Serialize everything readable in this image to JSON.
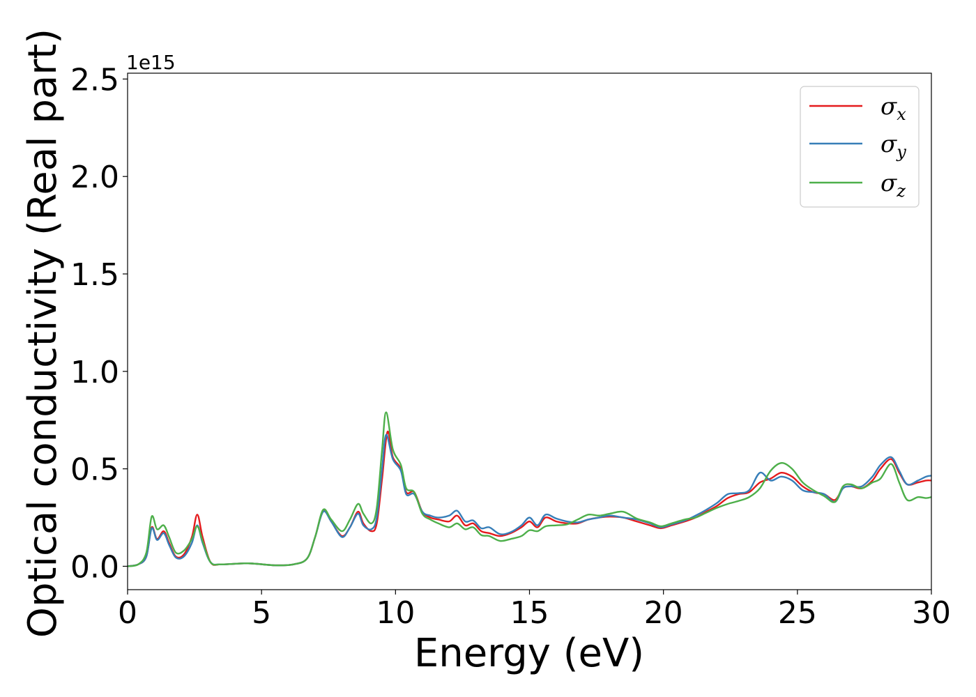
{
  "chart_data": {
    "type": "line",
    "xlabel": "Energy (eV)",
    "ylabel": "Optical conductivity (Real part)",
    "y_offset_label": "1e15",
    "y_scale_factor": 1000000000000000.0,
    "xlim": [
      0,
      30
    ],
    "ylim": [
      -0.12,
      2.53
    ],
    "grid": false,
    "legend_position": "top-right",
    "x_ticks": [
      0,
      5,
      10,
      15,
      20,
      25,
      30
    ],
    "x_tick_labels": [
      "0",
      "5",
      "10",
      "15",
      "20",
      "25",
      "30"
    ],
    "y_ticks": [
      0.0,
      0.5,
      1.0,
      1.5,
      2.0,
      2.5
    ],
    "y_tick_labels": [
      "0.0",
      "0.5",
      "1.0",
      "1.5",
      "2.0",
      "2.5"
    ],
    "series": [
      {
        "name": "σx",
        "symbol": "σ",
        "subscript": "x",
        "color": "#e41a1c",
        "points": [
          [
            0,
            0
          ],
          [
            0.4,
            0.01
          ],
          [
            0.7,
            0.05
          ],
          [
            0.9,
            0.2
          ],
          [
            1.1,
            0.14
          ],
          [
            1.35,
            0.18
          ],
          [
            1.55,
            0.12
          ],
          [
            1.8,
            0.05
          ],
          [
            2.1,
            0.06
          ],
          [
            2.4,
            0.15
          ],
          [
            2.6,
            0.265
          ],
          [
            2.8,
            0.15
          ],
          [
            3.1,
            0.02
          ],
          [
            3.5,
            0.01
          ],
          [
            4.5,
            0.015
          ],
          [
            5.5,
            0.005
          ],
          [
            6.2,
            0.01
          ],
          [
            6.7,
            0.04
          ],
          [
            7.0,
            0.15
          ],
          [
            7.3,
            0.285
          ],
          [
            7.6,
            0.23
          ],
          [
            8.0,
            0.155
          ],
          [
            8.3,
            0.2
          ],
          [
            8.6,
            0.28
          ],
          [
            8.8,
            0.22
          ],
          [
            9.1,
            0.18
          ],
          [
            9.3,
            0.22
          ],
          [
            9.5,
            0.45
          ],
          [
            9.7,
            0.69
          ],
          [
            9.9,
            0.56
          ],
          [
            10.2,
            0.5
          ],
          [
            10.4,
            0.38
          ],
          [
            10.7,
            0.38
          ],
          [
            11.0,
            0.28
          ],
          [
            11.3,
            0.25
          ],
          [
            11.6,
            0.24
          ],
          [
            12.0,
            0.23
          ],
          [
            12.3,
            0.26
          ],
          [
            12.6,
            0.21
          ],
          [
            12.9,
            0.22
          ],
          [
            13.2,
            0.18
          ],
          [
            13.5,
            0.17
          ],
          [
            13.9,
            0.155
          ],
          [
            14.3,
            0.17
          ],
          [
            14.7,
            0.2
          ],
          [
            15.0,
            0.23
          ],
          [
            15.3,
            0.2
          ],
          [
            15.6,
            0.25
          ],
          [
            16.0,
            0.23
          ],
          [
            16.4,
            0.22
          ],
          [
            16.8,
            0.22
          ],
          [
            17.2,
            0.24
          ],
          [
            17.6,
            0.25
          ],
          [
            18.0,
            0.255
          ],
          [
            18.5,
            0.25
          ],
          [
            19.0,
            0.23
          ],
          [
            19.5,
            0.21
          ],
          [
            19.9,
            0.195
          ],
          [
            20.3,
            0.21
          ],
          [
            20.8,
            0.23
          ],
          [
            21.2,
            0.25
          ],
          [
            21.6,
            0.28
          ],
          [
            22.0,
            0.31
          ],
          [
            22.4,
            0.35
          ],
          [
            22.8,
            0.37
          ],
          [
            23.2,
            0.38
          ],
          [
            23.6,
            0.43
          ],
          [
            24.0,
            0.45
          ],
          [
            24.4,
            0.48
          ],
          [
            24.8,
            0.46
          ],
          [
            25.2,
            0.41
          ],
          [
            25.6,
            0.38
          ],
          [
            26.0,
            0.37
          ],
          [
            26.4,
            0.34
          ],
          [
            26.7,
            0.4
          ],
          [
            27.0,
            0.41
          ],
          [
            27.4,
            0.4
          ],
          [
            27.8,
            0.44
          ],
          [
            28.1,
            0.5
          ],
          [
            28.5,
            0.55
          ],
          [
            28.8,
            0.48
          ],
          [
            29.1,
            0.42
          ],
          [
            29.5,
            0.43
          ],
          [
            29.8,
            0.44
          ],
          [
            30.0,
            0.44
          ]
        ]
      },
      {
        "name": "σy",
        "symbol": "σ",
        "subscript": "y",
        "color": "#377eb8",
        "points": [
          [
            0,
            0
          ],
          [
            0.4,
            0.01
          ],
          [
            0.7,
            0.05
          ],
          [
            0.9,
            0.195
          ],
          [
            1.1,
            0.135
          ],
          [
            1.35,
            0.17
          ],
          [
            1.55,
            0.11
          ],
          [
            1.8,
            0.045
          ],
          [
            2.1,
            0.05
          ],
          [
            2.4,
            0.12
          ],
          [
            2.6,
            0.21
          ],
          [
            2.8,
            0.12
          ],
          [
            3.1,
            0.02
          ],
          [
            3.5,
            0.01
          ],
          [
            4.5,
            0.015
          ],
          [
            5.5,
            0.005
          ],
          [
            6.2,
            0.01
          ],
          [
            6.7,
            0.04
          ],
          [
            7.0,
            0.15
          ],
          [
            7.3,
            0.28
          ],
          [
            7.6,
            0.23
          ],
          [
            8.0,
            0.15
          ],
          [
            8.3,
            0.2
          ],
          [
            8.6,
            0.27
          ],
          [
            8.8,
            0.21
          ],
          [
            9.1,
            0.19
          ],
          [
            9.3,
            0.25
          ],
          [
            9.5,
            0.5
          ],
          [
            9.65,
            0.675
          ],
          [
            9.9,
            0.55
          ],
          [
            10.2,
            0.49
          ],
          [
            10.4,
            0.37
          ],
          [
            10.7,
            0.37
          ],
          [
            11.0,
            0.28
          ],
          [
            11.3,
            0.26
          ],
          [
            11.6,
            0.25
          ],
          [
            12.0,
            0.26
          ],
          [
            12.3,
            0.285
          ],
          [
            12.6,
            0.23
          ],
          [
            12.9,
            0.235
          ],
          [
            13.2,
            0.195
          ],
          [
            13.5,
            0.2
          ],
          [
            13.9,
            0.165
          ],
          [
            14.3,
            0.175
          ],
          [
            14.7,
            0.21
          ],
          [
            15.0,
            0.25
          ],
          [
            15.3,
            0.21
          ],
          [
            15.6,
            0.265
          ],
          [
            16.0,
            0.245
          ],
          [
            16.4,
            0.23
          ],
          [
            16.8,
            0.225
          ],
          [
            17.2,
            0.24
          ],
          [
            17.6,
            0.25
          ],
          [
            18.0,
            0.26
          ],
          [
            18.5,
            0.25
          ],
          [
            19.0,
            0.24
          ],
          [
            19.5,
            0.22
          ],
          [
            19.9,
            0.2
          ],
          [
            20.3,
            0.215
          ],
          [
            20.8,
            0.235
          ],
          [
            21.2,
            0.26
          ],
          [
            21.6,
            0.29
          ],
          [
            22.0,
            0.325
          ],
          [
            22.4,
            0.37
          ],
          [
            22.8,
            0.375
          ],
          [
            23.2,
            0.39
          ],
          [
            23.6,
            0.48
          ],
          [
            24.0,
            0.44
          ],
          [
            24.4,
            0.46
          ],
          [
            24.8,
            0.44
          ],
          [
            25.2,
            0.39
          ],
          [
            25.6,
            0.38
          ],
          [
            26.0,
            0.37
          ],
          [
            26.4,
            0.33
          ],
          [
            26.7,
            0.4
          ],
          [
            27.0,
            0.41
          ],
          [
            27.4,
            0.41
          ],
          [
            27.8,
            0.46
          ],
          [
            28.1,
            0.52
          ],
          [
            28.5,
            0.56
          ],
          [
            28.8,
            0.49
          ],
          [
            29.1,
            0.42
          ],
          [
            29.5,
            0.44
          ],
          [
            29.8,
            0.46
          ],
          [
            30.0,
            0.465
          ]
        ]
      },
      {
        "name": "σz",
        "symbol": "σ",
        "subscript": "z",
        "color": "#4daf4a",
        "points": [
          [
            0,
            0
          ],
          [
            0.4,
            0.01
          ],
          [
            0.7,
            0.07
          ],
          [
            0.9,
            0.255
          ],
          [
            1.1,
            0.19
          ],
          [
            1.35,
            0.21
          ],
          [
            1.55,
            0.15
          ],
          [
            1.8,
            0.07
          ],
          [
            2.1,
            0.08
          ],
          [
            2.4,
            0.14
          ],
          [
            2.6,
            0.205
          ],
          [
            2.8,
            0.13
          ],
          [
            3.1,
            0.02
          ],
          [
            3.5,
            0.01
          ],
          [
            4.5,
            0.015
          ],
          [
            5.5,
            0.005
          ],
          [
            6.2,
            0.01
          ],
          [
            6.7,
            0.04
          ],
          [
            7.0,
            0.15
          ],
          [
            7.3,
            0.29
          ],
          [
            7.6,
            0.24
          ],
          [
            8.0,
            0.18
          ],
          [
            8.3,
            0.24
          ],
          [
            8.6,
            0.32
          ],
          [
            8.8,
            0.27
          ],
          [
            9.1,
            0.22
          ],
          [
            9.3,
            0.3
          ],
          [
            9.5,
            0.6
          ],
          [
            9.65,
            0.79
          ],
          [
            9.9,
            0.6
          ],
          [
            10.2,
            0.52
          ],
          [
            10.4,
            0.4
          ],
          [
            10.7,
            0.38
          ],
          [
            11.0,
            0.27
          ],
          [
            11.3,
            0.24
          ],
          [
            11.6,
            0.22
          ],
          [
            12.0,
            0.2
          ],
          [
            12.3,
            0.22
          ],
          [
            12.6,
            0.19
          ],
          [
            12.9,
            0.2
          ],
          [
            13.2,
            0.16
          ],
          [
            13.5,
            0.155
          ],
          [
            13.9,
            0.13
          ],
          [
            14.3,
            0.14
          ],
          [
            14.7,
            0.155
          ],
          [
            15.0,
            0.185
          ],
          [
            15.3,
            0.18
          ],
          [
            15.6,
            0.205
          ],
          [
            16.0,
            0.21
          ],
          [
            16.4,
            0.215
          ],
          [
            16.8,
            0.24
          ],
          [
            17.2,
            0.265
          ],
          [
            17.6,
            0.26
          ],
          [
            18.0,
            0.27
          ],
          [
            18.5,
            0.28
          ],
          [
            19.0,
            0.245
          ],
          [
            19.5,
            0.225
          ],
          [
            19.9,
            0.205
          ],
          [
            20.3,
            0.22
          ],
          [
            20.8,
            0.24
          ],
          [
            21.2,
            0.25
          ],
          [
            21.6,
            0.275
          ],
          [
            22.0,
            0.3
          ],
          [
            22.4,
            0.32
          ],
          [
            22.8,
            0.335
          ],
          [
            23.2,
            0.355
          ],
          [
            23.6,
            0.4
          ],
          [
            24.0,
            0.49
          ],
          [
            24.4,
            0.53
          ],
          [
            24.8,
            0.5
          ],
          [
            25.2,
            0.43
          ],
          [
            25.6,
            0.39
          ],
          [
            26.0,
            0.36
          ],
          [
            26.4,
            0.33
          ],
          [
            26.7,
            0.41
          ],
          [
            27.0,
            0.42
          ],
          [
            27.4,
            0.4
          ],
          [
            27.8,
            0.43
          ],
          [
            28.1,
            0.45
          ],
          [
            28.5,
            0.525
          ],
          [
            28.8,
            0.43
          ],
          [
            29.1,
            0.34
          ],
          [
            29.5,
            0.355
          ],
          [
            29.8,
            0.35
          ],
          [
            30.0,
            0.355
          ]
        ]
      }
    ]
  }
}
